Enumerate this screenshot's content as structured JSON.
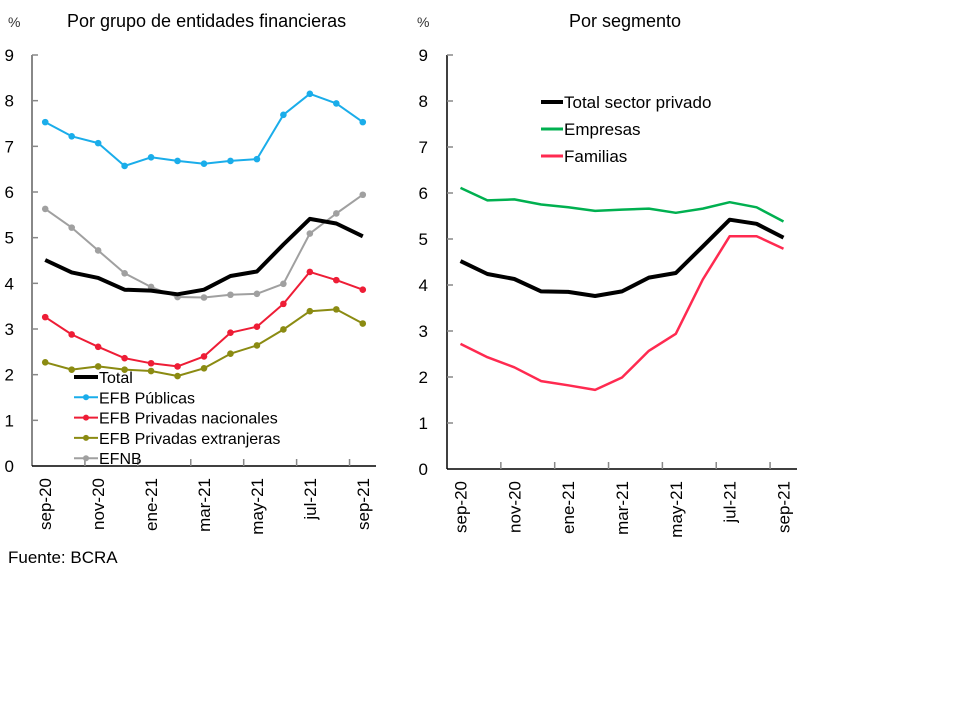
{
  "source": "Fuente: BCRA",
  "chart_data": [
    {
      "type": "line",
      "title": "Por grupo de entidades financieras",
      "ylabel": "%",
      "xlabel": "",
      "ylim": [
        0,
        9
      ],
      "yticks": [
        0,
        1,
        2,
        3,
        4,
        5,
        6,
        7,
        8,
        9
      ],
      "grid": false,
      "legend": "bottom-left",
      "x": [
        "sep-20",
        "oct-20",
        "nov-20",
        "dic-20",
        "ene-21",
        "feb-21",
        "mar-21",
        "abr-21",
        "may-21",
        "jun-21",
        "jul-21",
        "ago-21",
        "sep-21"
      ],
      "xtick_labels": [
        "sep-20",
        "nov-20",
        "ene-21",
        "mar-21",
        "may-21",
        "jul-21",
        "sep-21"
      ],
      "series": [
        {
          "name": "Total",
          "color": "#000000",
          "marker": false,
          "width": 4,
          "values": [
            4.51,
            4.24,
            4.12,
            3.86,
            3.84,
            3.76,
            3.86,
            4.16,
            4.26,
            4.85,
            5.41,
            5.31,
            5.03
          ]
        },
        {
          "name": "EFB Públicas",
          "color": "#1aadea",
          "marker": true,
          "width": 2,
          "values": [
            7.53,
            7.22,
            7.07,
            6.57,
            6.76,
            6.68,
            6.62,
            6.68,
            6.72,
            7.69,
            8.15,
            7.94,
            7.53
          ]
        },
        {
          "name": "EFB Privadas nacionales",
          "color": "#ee1d36",
          "marker": true,
          "width": 2,
          "values": [
            3.26,
            2.88,
            2.61,
            2.36,
            2.25,
            2.18,
            2.4,
            2.92,
            3.05,
            3.55,
            4.25,
            4.07,
            3.86
          ]
        },
        {
          "name": "EFB Privadas extranjeras",
          "color": "#8b8b12",
          "marker": true,
          "width": 2,
          "values": [
            2.27,
            2.11,
            2.18,
            2.11,
            2.08,
            1.97,
            2.14,
            2.46,
            2.64,
            2.99,
            3.39,
            3.43,
            3.12
          ]
        },
        {
          "name": "EFNB",
          "color": "#a0a0a0",
          "marker": true,
          "width": 2,
          "values": [
            5.63,
            5.22,
            4.72,
            4.22,
            3.92,
            3.7,
            3.69,
            3.75,
            3.77,
            3.99,
            5.09,
            5.53,
            5.94
          ]
        }
      ]
    },
    {
      "type": "line",
      "title": "Por segmento",
      "ylabel": "%",
      "xlabel": "",
      "ylim": [
        0,
        9
      ],
      "yticks": [
        0,
        1,
        2,
        3,
        4,
        5,
        6,
        7,
        8,
        9
      ],
      "grid": false,
      "legend": "top-right",
      "x": [
        "sep-20",
        "oct-20",
        "nov-20",
        "dic-20",
        "ene-21",
        "feb-21",
        "mar-21",
        "abr-21",
        "may-21",
        "jun-21",
        "jul-21",
        "ago-21",
        "sep-21"
      ],
      "xtick_labels": [
        "sep-20",
        "nov-20",
        "ene-21",
        "mar-21",
        "may-21",
        "jul-21",
        "sep-21"
      ],
      "series": [
        {
          "name": "Total sector privado",
          "color": "#000000",
          "marker": false,
          "width": 4,
          "values": [
            4.52,
            4.24,
            4.13,
            3.86,
            3.85,
            3.76,
            3.86,
            4.16,
            4.26,
            4.84,
            5.42,
            5.33,
            5.03
          ]
        },
        {
          "name": "Empresas",
          "color": "#00b050",
          "marker": false,
          "width": 2.5,
          "values": [
            6.11,
            5.84,
            5.86,
            5.75,
            5.69,
            5.61,
            5.64,
            5.66,
            5.57,
            5.66,
            5.8,
            5.69,
            5.38
          ]
        },
        {
          "name": "Familias",
          "color": "#ff2a50",
          "marker": false,
          "width": 2.5,
          "values": [
            2.72,
            2.43,
            2.21,
            1.91,
            1.82,
            1.72,
            1.99,
            2.57,
            2.94,
            4.12,
            5.06,
            5.06,
            4.79
          ]
        }
      ]
    }
  ]
}
